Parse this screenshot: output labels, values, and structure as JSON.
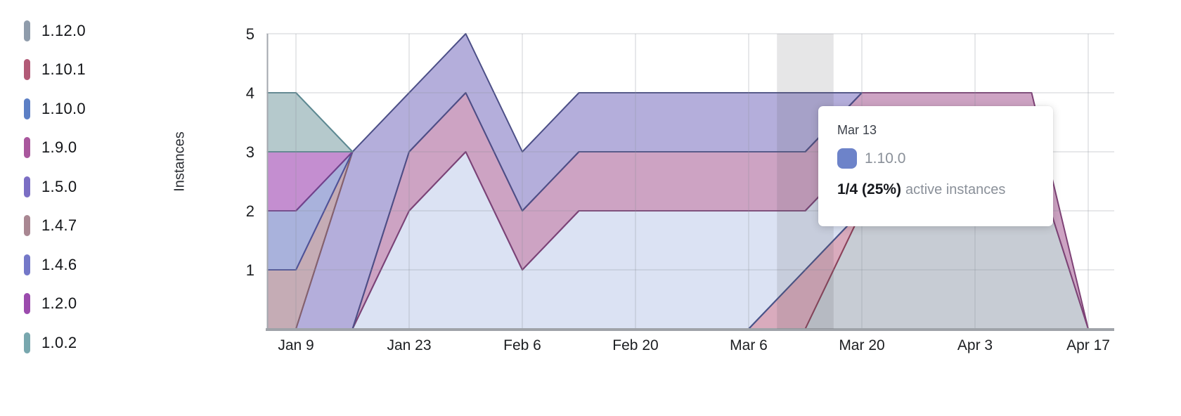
{
  "y_axis": {
    "title": "Instances",
    "ticks": [
      "5",
      "4",
      "3",
      "2",
      "1"
    ],
    "tick_values": [
      5,
      4,
      3,
      2,
      1
    ]
  },
  "x_axis": {
    "ticks": [
      "Jan 9",
      "Jan 23",
      "Feb 6",
      "Feb 20",
      "Mar 6",
      "Mar 20",
      "Apr 3",
      "Apr 17"
    ]
  },
  "tooltip": {
    "date": "Mar 13",
    "series_label": "1.10.0",
    "swatch_color": "#6d83c9",
    "value": "1/4 (25%)",
    "value_suffix": "active instances"
  },
  "chart_data": {
    "type": "area",
    "stacked": true,
    "title": "",
    "xlabel": "",
    "ylabel": "Instances",
    "ylim": [
      0,
      5
    ],
    "grid": true,
    "legend_position": "left",
    "x": [
      "Jan 2",
      "Jan 9",
      "Jan 16",
      "Jan 23",
      "Jan 30",
      "Feb 6",
      "Feb 13",
      "Feb 20",
      "Feb 27",
      "Mar 6",
      "Mar 13",
      "Mar 20",
      "Mar 27",
      "Apr 3",
      "Apr 10",
      "Apr 17"
    ],
    "series": [
      {
        "name": "1.12.0",
        "color": "#8f9cab",
        "fill": "#c7ccd4",
        "stroke": "#787f8c",
        "values": [
          0,
          0,
          0,
          0,
          0,
          0,
          0,
          0,
          0,
          0,
          0,
          2,
          3,
          3,
          3,
          0
        ]
      },
      {
        "name": "1.10.1",
        "color": "#b25a77",
        "fill": "#d9abbd",
        "stroke": "#8d4059",
        "values": [
          0,
          0,
          0,
          0,
          0,
          0,
          0,
          0,
          0,
          0,
          1,
          0,
          0,
          0,
          0,
          0
        ]
      },
      {
        "name": "1.10.0",
        "color": "#5c7fc5",
        "fill": "#dbe2f3",
        "stroke": "#46558c",
        "values": [
          0,
          0,
          0,
          2,
          3,
          1,
          2,
          2,
          2,
          2,
          1,
          1,
          0,
          0,
          0,
          0
        ]
      },
      {
        "name": "1.9.0",
        "color": "#a9579d",
        "fill": "#cda3c3",
        "stroke": "#7e4276",
        "values": [
          0,
          0,
          0,
          1,
          1,
          1,
          1,
          1,
          1,
          1,
          1,
          1,
          1,
          1,
          1,
          0
        ]
      },
      {
        "name": "1.5.0",
        "color": "#7b6ec4",
        "fill": "#b4aedb",
        "stroke": "#4c4f87",
        "values": [
          0,
          0,
          3,
          1,
          1,
          1,
          1,
          1,
          1,
          1,
          1,
          0,
          0,
          0,
          0,
          0
        ]
      },
      {
        "name": "1.4.7",
        "color": "#a98792",
        "fill": "#c5acb5",
        "stroke": "#87616c",
        "values": [
          1,
          1,
          0,
          0,
          0,
          0,
          0,
          0,
          0,
          0,
          0,
          0,
          0,
          0,
          0,
          0
        ]
      },
      {
        "name": "1.4.6",
        "color": "#7478c8",
        "fill": "#a9b2dc",
        "stroke": "#4d539b",
        "values": [
          1,
          1,
          0,
          0,
          0,
          0,
          0,
          0,
          0,
          0,
          0,
          0,
          0,
          0,
          0,
          0
        ]
      },
      {
        "name": "1.2.0",
        "color": "#9b4bad",
        "fill": "#c48ed0",
        "stroke": "#73418b",
        "values": [
          1,
          1,
          0,
          0,
          0,
          0,
          0,
          0,
          0,
          0,
          0,
          0,
          0,
          0,
          0,
          0
        ]
      },
      {
        "name": "1.0.2",
        "color": "#78a7ae",
        "fill": "#b5c9cc",
        "stroke": "#5d8992",
        "values": [
          1,
          1,
          0,
          0,
          0,
          0,
          0,
          0,
          0,
          0,
          0,
          0,
          0,
          0,
          0,
          0
        ]
      }
    ],
    "hover_date": "Mar 13",
    "colors": {
      "gridline": "rgba(140,145,155,0.28)",
      "axis_line": "#a3a7ae",
      "baseline": "#9fa3a9",
      "tick_text": "#1c1e21",
      "hover_band": "rgba(85,85,95,0.15)"
    }
  }
}
